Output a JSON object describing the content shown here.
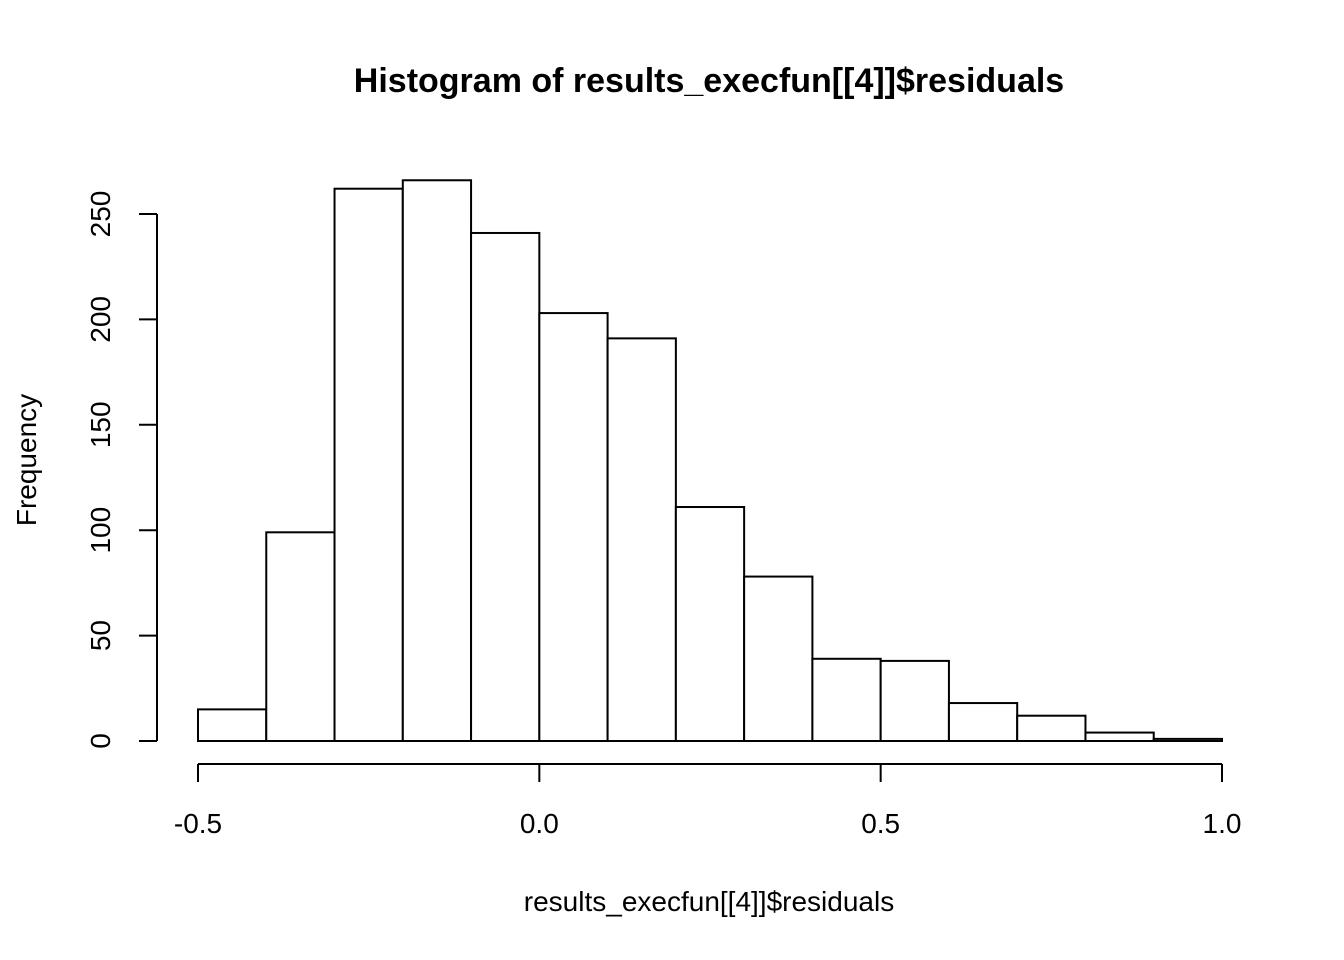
{
  "chart_data": {
    "type": "bar",
    "title": "Histogram of results_execfun[[4]]$residuals",
    "xlabel": "results_execfun[[4]]$residuals",
    "ylabel": "Frequency",
    "bin_edges": [
      -0.5,
      -0.4,
      -0.3,
      -0.2,
      -0.1,
      0.0,
      0.1,
      0.2,
      0.3,
      0.4,
      0.5,
      0.6,
      0.7,
      0.8,
      0.9,
      1.0
    ],
    "values": [
      15,
      99,
      262,
      266,
      241,
      203,
      191,
      111,
      78,
      39,
      38,
      18,
      12,
      4,
      1
    ],
    "xlim": [
      -0.5,
      1.0
    ],
    "ylim": [
      0,
      266
    ],
    "x_ticks": [
      {
        "value": -0.5,
        "label": "-0.5"
      },
      {
        "value": 0.0,
        "label": "0.0"
      },
      {
        "value": 0.5,
        "label": "0.5"
      },
      {
        "value": 1.0,
        "label": "1.0"
      }
    ],
    "y_ticks": [
      {
        "value": 0,
        "label": "0"
      },
      {
        "value": 50,
        "label": "50"
      },
      {
        "value": 100,
        "label": "100"
      },
      {
        "value": 150,
        "label": "150"
      },
      {
        "value": 200,
        "label": "200"
      },
      {
        "value": 250,
        "label": "250"
      }
    ],
    "grid": false,
    "colors": {
      "bar_fill": "#ffffff",
      "bar_stroke": "#000000"
    }
  }
}
